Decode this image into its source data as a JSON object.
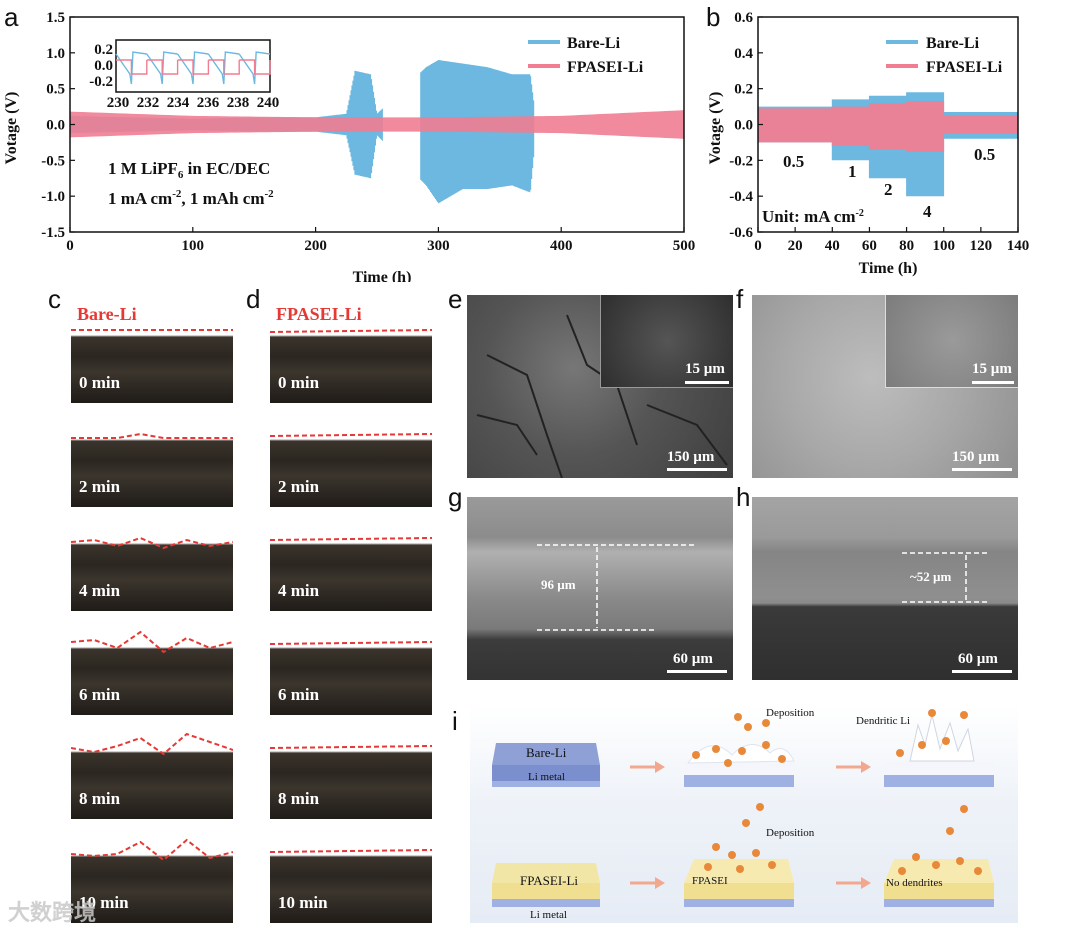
{
  "panels": {
    "a": "a",
    "b": "b",
    "c": "c",
    "d": "d",
    "e": "e",
    "f": "f",
    "g": "g",
    "h": "h",
    "i": "i"
  },
  "chart_data": [
    {
      "panel": "a",
      "type": "line",
      "xlabel": "Time (h)",
      "ylabel": "Votage (V)",
      "xlim": [
        0,
        500
      ],
      "ylim": [
        -1.5,
        1.5
      ],
      "xticks": [
        "0",
        "100",
        "200",
        "300",
        "400",
        "500"
      ],
      "yticks": [
        "-1.5",
        "-1.0",
        "-0.5",
        "0.0",
        "0.5",
        "1.0",
        "1.5"
      ],
      "legend_position": "top-right",
      "series": [
        {
          "name": "Bare-Li",
          "color": "#6cb8e0",
          "envelope_x": [
            0,
            50,
            100,
            150,
            200,
            225,
            232,
            245,
            250,
            290,
            300,
            320,
            340,
            360,
            375,
            380,
            500
          ],
          "envelope_upper": [
            0.12,
            0.1,
            0.08,
            0.1,
            0.1,
            0.15,
            0.75,
            0.7,
            0.15,
            0.8,
            0.9,
            0.85,
            0.8,
            0.7,
            0.7,
            0.0,
            0.0
          ],
          "envelope_lower": [
            -0.12,
            -0.1,
            -0.08,
            -0.1,
            -0.1,
            -0.15,
            -0.7,
            -0.75,
            -0.15,
            -0.85,
            -1.1,
            -0.9,
            -0.9,
            -0.85,
            -0.95,
            0.0,
            0.0
          ]
        },
        {
          "name": "FPASEI-Li",
          "color": "#f07d92",
          "envelope_x": [
            0,
            100,
            200,
            300,
            400,
            500
          ],
          "envelope_upper": [
            0.18,
            0.12,
            0.1,
            0.1,
            0.12,
            0.2
          ],
          "envelope_lower": [
            -0.18,
            -0.12,
            -0.1,
            -0.1,
            -0.12,
            -0.2
          ]
        }
      ],
      "annotations": [
        "1 M LiPF6 in EC/DEC",
        "1 mA cm-2, 1 mAh cm-2"
      ],
      "inset": {
        "xticks": [
          "230",
          "232",
          "234",
          "236",
          "238",
          "240"
        ],
        "yticks": [
          "0.2",
          "0.0",
          "-0.2"
        ]
      }
    },
    {
      "panel": "b",
      "type": "line",
      "xlabel": "Time (h)",
      "ylabel": "Votage (V)",
      "xlim": [
        0,
        140
      ],
      "ylim": [
        -0.6,
        0.6
      ],
      "xticks": [
        "0",
        "20",
        "40",
        "60",
        "80",
        "100",
        "120",
        "140"
      ],
      "yticks": [
        "-0.6",
        "-0.4",
        "-0.2",
        "0.0",
        "0.2",
        "0.4",
        "0.6"
      ],
      "legend_position": "top-right",
      "series": [
        {
          "name": "Bare-Li",
          "color": "#6cb8e0",
          "segments": [
            {
              "x": [
                0,
                40
              ],
              "upper": 0.1,
              "lower": -0.1
            },
            {
              "x": [
                40,
                60
              ],
              "upper": 0.14,
              "lower": -0.2
            },
            {
              "x": [
                60,
                80
              ],
              "upper": 0.16,
              "lower": -0.3
            },
            {
              "x": [
                80,
                100
              ],
              "upper": 0.18,
              "lower": -0.4
            },
            {
              "x": [
                100,
                140
              ],
              "upper": 0.07,
              "lower": -0.08
            }
          ]
        },
        {
          "name": "FPASEI-Li",
          "color": "#f07d92",
          "segments": [
            {
              "x": [
                0,
                40
              ],
              "upper": 0.09,
              "lower": -0.1
            },
            {
              "x": [
                40,
                60
              ],
              "upper": 0.1,
              "lower": -0.12
            },
            {
              "x": [
                60,
                80
              ],
              "upper": 0.12,
              "lower": -0.14
            },
            {
              "x": [
                80,
                100
              ],
              "upper": 0.13,
              "lower": -0.15
            },
            {
              "x": [
                100,
                140
              ],
              "upper": 0.05,
              "lower": -0.05
            }
          ]
        }
      ],
      "segment_labels": [
        "0.5",
        "1",
        "2",
        "4",
        "0.5"
      ],
      "unit_note": "Unit: mA cm-2"
    }
  ],
  "panel_c": {
    "title": "Bare-Li",
    "times": [
      "0 min",
      "2 min",
      "4 min",
      "6 min",
      "8 min",
      "10 min"
    ]
  },
  "panel_d": {
    "title": "FPASEI-Li",
    "times": [
      "0 min",
      "2 min",
      "4 min",
      "6 min",
      "8 min",
      "10 min"
    ]
  },
  "sem": {
    "e_inset_scale": "15 µm",
    "e_scale": "150 µm",
    "f_inset_scale": "15 µm",
    "f_scale": "150 µm",
    "g_thickness": "96 µm",
    "g_scale": "60 µm",
    "h_thickness": "~52 µm",
    "h_scale": "60 µm"
  },
  "schematic": {
    "bare_label": "Bare-Li",
    "li_metal": "Li metal",
    "deposition": "Deposition",
    "dendritic": "Dendritic Li",
    "fpasei_label": "FPASEI-Li",
    "fpasei": "FPASEI",
    "no_dendrites": "No dendrites"
  },
  "watermark": "大数跨境"
}
